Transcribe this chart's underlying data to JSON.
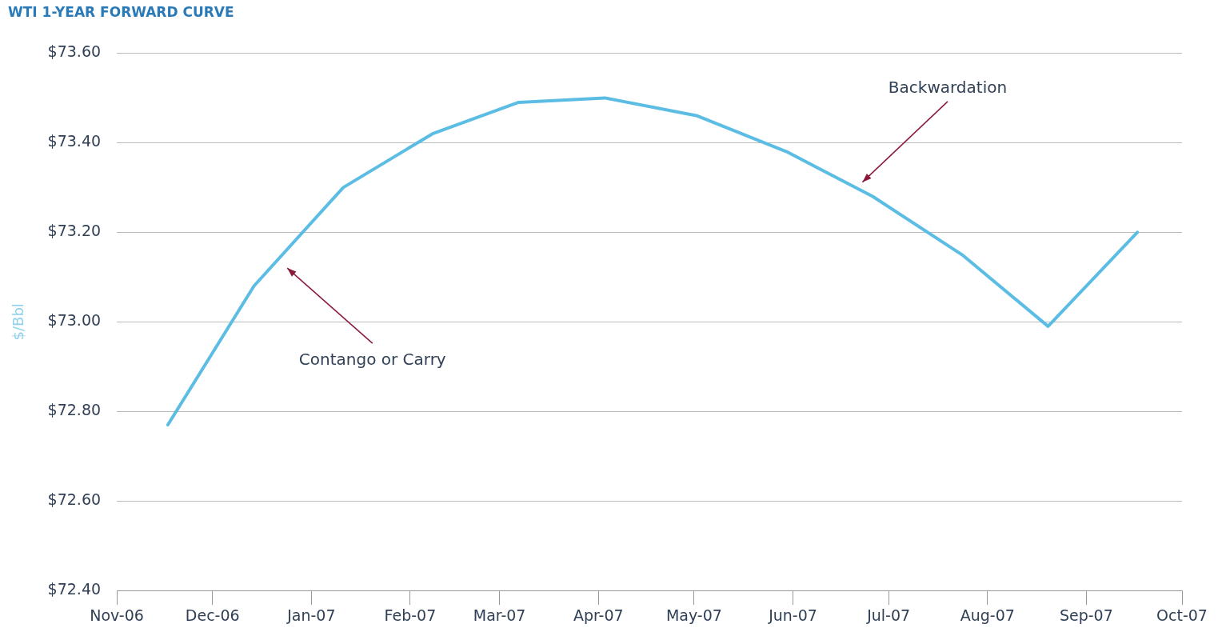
{
  "chart_data": {
    "type": "line",
    "title": "WTI 1-YEAR FORWARD CURVE",
    "ylabel": "$/Bbl",
    "x": [
      "2006-11-17",
      "2006-12-14",
      "2007-01-11",
      "2007-02-08",
      "2007-03-07",
      "2007-04-03",
      "2007-05-02",
      "2007-05-30",
      "2007-06-26",
      "2007-07-24",
      "2007-08-20",
      "2007-09-17"
    ],
    "series": [
      {
        "color": "#5bbde4",
        "values": [
          72.77,
          73.08,
          73.3,
          73.42,
          73.49,
          73.5,
          73.46,
          73.38,
          73.28,
          73.15,
          72.99,
          73.2
        ]
      }
    ],
    "xlim": [
      "2006-11-01",
      "2007-10-01"
    ],
    "xticks": [
      {
        "value": "2006-11",
        "label": "Nov-06"
      },
      {
        "value": "2006-12",
        "label": "Dec-06"
      },
      {
        "value": "2007-01",
        "label": "Jan-07"
      },
      {
        "value": "2007-02",
        "label": "Feb-07"
      },
      {
        "value": "2007-03",
        "label": "Mar-07"
      },
      {
        "value": "2007-04",
        "label": "Apr-07"
      },
      {
        "value": "2007-05",
        "label": "May-07"
      },
      {
        "value": "2007-06",
        "label": "Jun-07"
      },
      {
        "value": "2007-07",
        "label": "Jul-07"
      },
      {
        "value": "2007-08",
        "label": "Aug-07"
      },
      {
        "value": "2007-09",
        "label": "Sep-07"
      },
      {
        "value": "2007-10",
        "label": "Oct-07"
      }
    ],
    "ylim": [
      72.4,
      73.6
    ],
    "yticks": [
      {
        "value": 72.4,
        "label": "$72.40"
      },
      {
        "value": 72.6,
        "label": "$72.60"
      },
      {
        "value": 72.8,
        "label": "$72.80"
      },
      {
        "value": 73.0,
        "label": "$73.00"
      },
      {
        "value": 73.2,
        "label": "$73.20"
      },
      {
        "value": 73.4,
        "label": "$73.40"
      },
      {
        "value": 73.6,
        "label": "$73.60"
      }
    ],
    "grid": "y",
    "legend": false,
    "marker": "none",
    "line_style": "solid",
    "annotations": [
      "Backwardation",
      "Contango or Carry"
    ]
  }
}
